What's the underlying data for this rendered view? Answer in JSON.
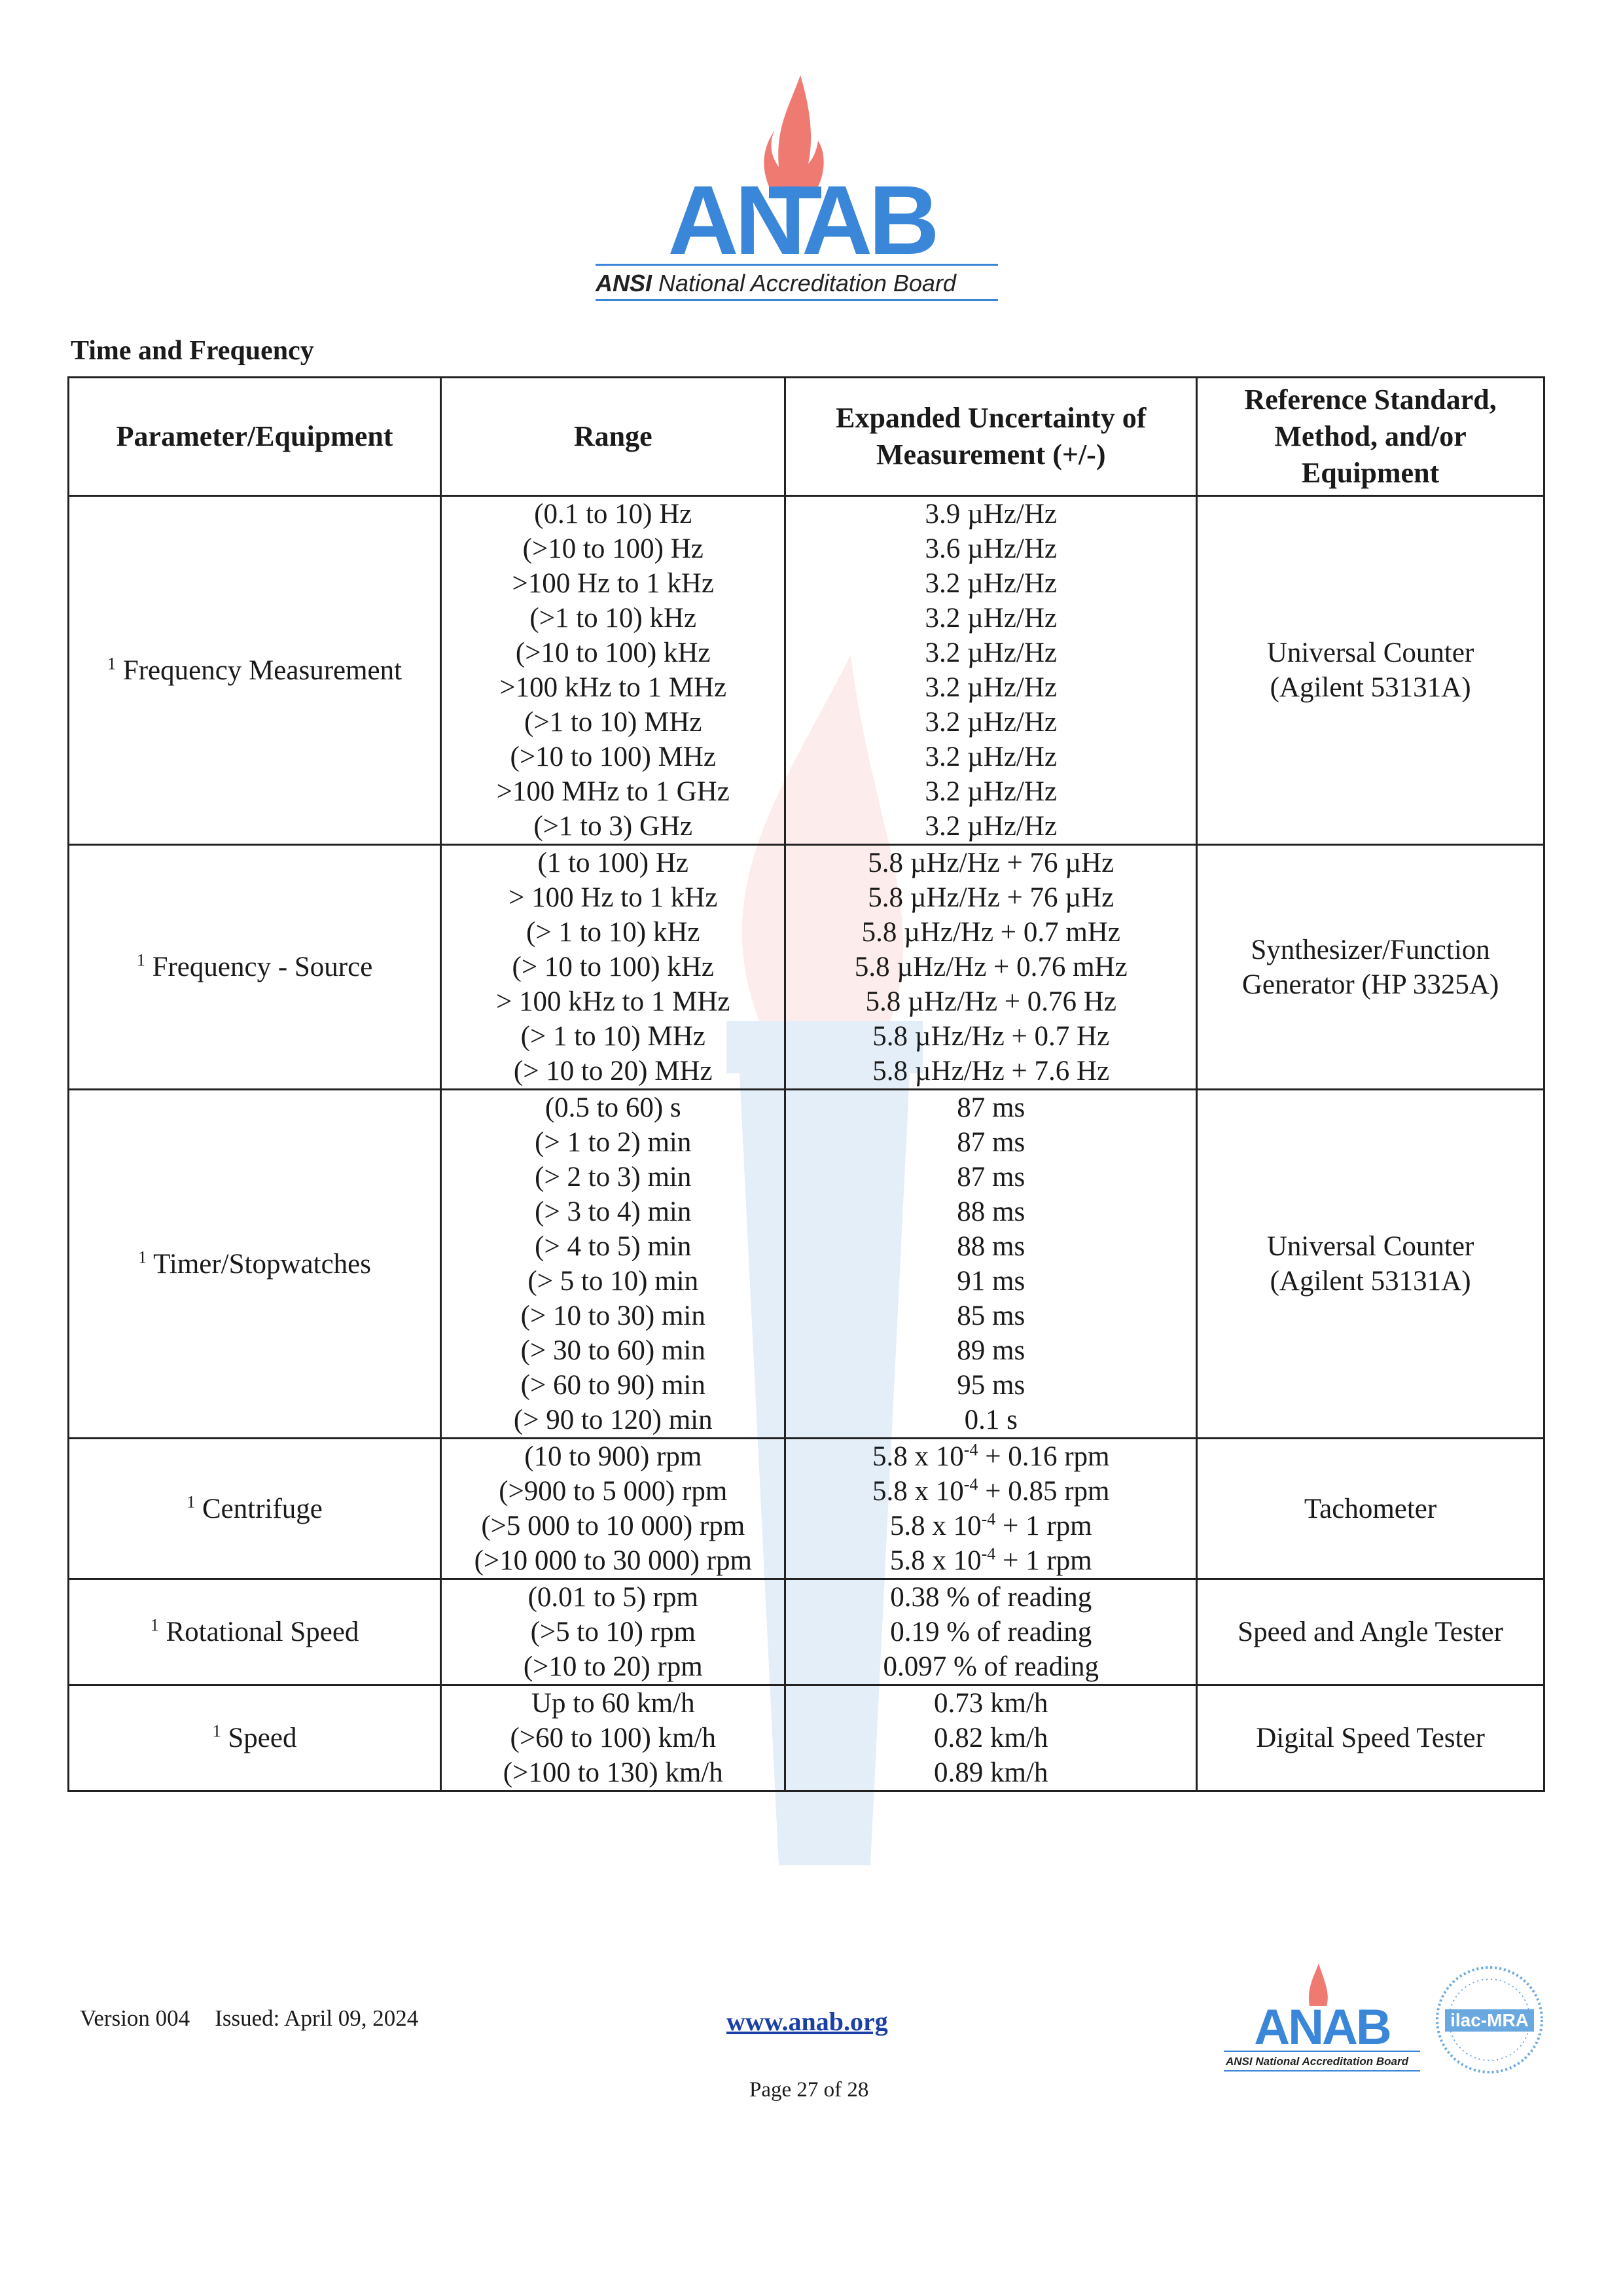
{
  "logo": {
    "wordmark": "ANAB",
    "tagline_bold": "ANSI",
    "tagline": "National Accreditation Board",
    "colors": {
      "blue": "#3a86d8",
      "flame": "#ef7a72",
      "text": "#222222"
    }
  },
  "section_title": "Time and Frequency",
  "table": {
    "headers": [
      "Parameter/Equipment",
      "Range",
      "Expanded Uncertainty of Measurement (+/-)",
      "Reference Standard, Method, and/or Equipment"
    ],
    "rows": [
      {
        "footnote": "1",
        "parameter": "Frequency Measurement",
        "ranges": [
          "(0.1 to 10) Hz",
          "(>10 to 100) Hz",
          ">100 Hz to 1 kHz",
          "(>1 to 10) kHz",
          "(>10 to 100) kHz",
          ">100 kHz to 1 MHz",
          "(>1 to 10) MHz",
          "(>10 to 100) MHz",
          ">100 MHz to 1 GHz",
          "(>1 to 3) GHz"
        ],
        "uncertainties": [
          {
            "text": "3.9 µHz/Hz"
          },
          {
            "text": "3.6 µHz/Hz"
          },
          {
            "text": "3.2 µHz/Hz"
          },
          {
            "text": "3.2 µHz/Hz"
          },
          {
            "text": "3.2 µHz/Hz"
          },
          {
            "text": "3.2 µHz/Hz"
          },
          {
            "text": "3.2 µHz/Hz"
          },
          {
            "text": "3.2 µHz/Hz"
          },
          {
            "text": "3.2 µHz/Hz"
          },
          {
            "text": "3.2 µHz/Hz"
          }
        ],
        "reference": [
          "Universal Counter",
          "(Agilent 53131A)"
        ]
      },
      {
        "footnote": "1",
        "parameter": "Frequency - Source",
        "ranges": [
          "(1 to 100) Hz",
          "> 100 Hz to 1 kHz",
          "(> 1 to 10) kHz",
          "(> 10 to 100) kHz",
          "> 100 kHz to 1 MHz",
          "(> 1 to 10) MHz",
          "(> 10 to 20) MHz"
        ],
        "uncertainties": [
          {
            "text": "5.8 µHz/Hz + 76 µHz"
          },
          {
            "text": "5.8 µHz/Hz + 76 µHz"
          },
          {
            "text": "5.8 µHz/Hz + 0.7 mHz"
          },
          {
            "text": "5.8 µHz/Hz + 0.76 mHz"
          },
          {
            "text": "5.8 µHz/Hz + 0.76 Hz"
          },
          {
            "text": "5.8 µHz/Hz + 0.7 Hz"
          },
          {
            "text": "5.8 µHz/Hz + 7.6 Hz"
          }
        ],
        "reference": [
          "Synthesizer/Function",
          "Generator (HP 3325A)"
        ]
      },
      {
        "footnote": "1",
        "parameter": "Timer/Stopwatches",
        "ranges": [
          "(0.5 to 60) s",
          "(> 1 to 2) min",
          "(> 2 to 3) min",
          "(> 3 to 4) min",
          "(> 4 to 5) min",
          "(> 5 to 10) min",
          "(> 10 to 30) min",
          "(> 30 to 60) min",
          "(> 60 to 90) min",
          "(> 90 to 120) min"
        ],
        "uncertainties": [
          {
            "text": "87 ms"
          },
          {
            "text": "87 ms"
          },
          {
            "text": "87 ms"
          },
          {
            "text": "88 ms"
          },
          {
            "text": "88 ms"
          },
          {
            "text": "91 ms"
          },
          {
            "text": "85 ms"
          },
          {
            "text": "89 ms"
          },
          {
            "text": "95 ms"
          },
          {
            "text": "0.1 s"
          }
        ],
        "reference": [
          "Universal Counter",
          "(Agilent 53131A)"
        ]
      },
      {
        "footnote": "1",
        "parameter": "Centrifuge",
        "ranges": [
          "(10 to 900) rpm",
          "(>900 to 5 000) rpm",
          "(>5 000 to 10 000) rpm",
          "(>10 000 to 30 000) rpm"
        ],
        "uncertainties": [
          {
            "text": "5.8 x 10",
            "exp": "-4",
            "suffix": " + 0.16 rpm"
          },
          {
            "text": "5.8 x 10",
            "exp": "-4",
            "suffix": " + 0.85 rpm"
          },
          {
            "text": "5.8 x 10",
            "exp": "-4",
            "suffix": " + 1 rpm"
          },
          {
            "text": "5.8 x 10",
            "exp": "-4",
            "suffix": " + 1 rpm"
          }
        ],
        "reference": [
          "Tachometer"
        ]
      },
      {
        "footnote": "1",
        "parameter": "Rotational Speed",
        "ranges": [
          "(0.01 to 5) rpm",
          "(>5 to 10) rpm",
          "(>10 to 20) rpm"
        ],
        "uncertainties": [
          {
            "text": "0.38 % of reading"
          },
          {
            "text": "0.19 % of reading"
          },
          {
            "text": "0.097 % of reading"
          }
        ],
        "reference": [
          "Speed and Angle Tester"
        ]
      },
      {
        "footnote": "1",
        "parameter": "Speed",
        "ranges": [
          "Up to 60 km/h",
          "(>60 to 100) km/h",
          "(>100 to 130) km/h"
        ],
        "uncertainties": [
          {
            "text": "0.73 km/h"
          },
          {
            "text": "0.82 km/h"
          },
          {
            "text": "0.89 km/h"
          }
        ],
        "reference": [
          "Digital Speed Tester"
        ]
      }
    ]
  },
  "footer": {
    "version": "Version 004",
    "issued": "Issued: April 09, 2024",
    "link": "www.anab.org",
    "page": "Page 27 of 28",
    "small_logo_wordmark": "ANAB",
    "small_logo_tagline": "ANSI National Accreditation Board",
    "ilac_mark": "ilac-MRA"
  }
}
